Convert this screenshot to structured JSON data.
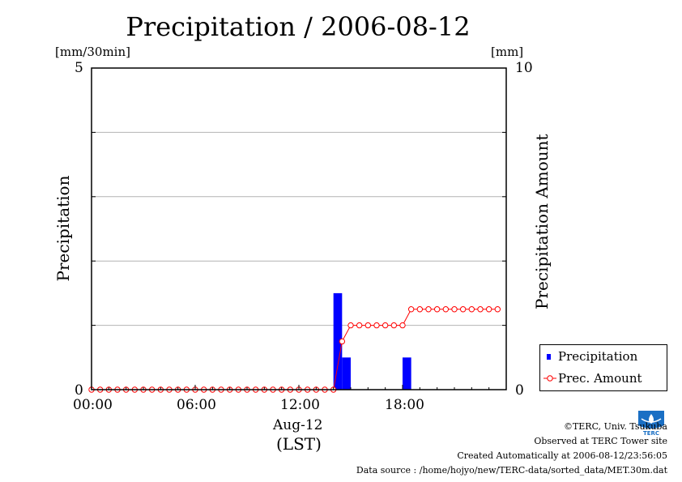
{
  "header": {
    "title": "Precipitation / 2006-08-12",
    "left_unit": "[mm/30min]",
    "right_unit": "[mm]"
  },
  "axes": {
    "left_ylabel": "Precipitation",
    "right_ylabel": "Precipitation Amount",
    "left_ticks": [
      "5",
      "0"
    ],
    "right_ticks": [
      "10",
      "0"
    ],
    "x_ticks": [
      "00:00",
      "06:00",
      "12:00",
      "18:00"
    ],
    "x_date": "Aug-12",
    "x_unit": "(LST)"
  },
  "legend": {
    "items": [
      {
        "label": "Precipitation",
        "color": "#0000ff"
      },
      {
        "label": "Prec. Amount",
        "color": "#ff0000"
      }
    ]
  },
  "footer": {
    "copyright": "©TERC, Univ. Tsukuba",
    "observed": "Observed at TERC Tower site",
    "created": "Created Automatically at 2006-08-12/23:56:05",
    "source": "Data source : /home/hojyo/new/TERC-data/sorted_data/MET.30m.dat"
  },
  "logo": {
    "text": "TERC",
    "color": "#1a6fc4"
  },
  "chart_data": {
    "type": "bar",
    "title": "Precipitation / 2006-08-12",
    "xlabel": "Aug-12 (LST)",
    "x_unit": "hours",
    "xlim": [
      0,
      24
    ],
    "ylabel": "Precipitation",
    "ylim": [
      0,
      5
    ],
    "y2label": "Precipitation Amount",
    "y2lim": [
      0,
      10
    ],
    "grid": true,
    "legend_position": "bottom-right",
    "bars": [
      {
        "time": 14.0,
        "value": 1.5
      },
      {
        "time": 14.5,
        "value": 0.5
      },
      {
        "time": 18.0,
        "value": 0.5
      }
    ],
    "cumulative": {
      "times": [
        0,
        0.5,
        1,
        1.5,
        2,
        2.5,
        3,
        3.5,
        4,
        4.5,
        5,
        5.5,
        6,
        6.5,
        7,
        7.5,
        8,
        8.5,
        9,
        9.5,
        10,
        10.5,
        11,
        11.5,
        12,
        12.5,
        13,
        13.5,
        14,
        14.5,
        15,
        15.5,
        16,
        16.5,
        17,
        17.5,
        18,
        18.5,
        19,
        19.5,
        20,
        20.5,
        21,
        21.5,
        22,
        22.5,
        23,
        23.5
      ],
      "values": [
        0,
        0,
        0,
        0,
        0,
        0,
        0,
        0,
        0,
        0,
        0,
        0,
        0,
        0,
        0,
        0,
        0,
        0,
        0,
        0,
        0,
        0,
        0,
        0,
        0,
        0,
        0,
        0,
        0,
        1.5,
        2,
        2,
        2,
        2,
        2,
        2,
        2,
        2.5,
        2.5,
        2.5,
        2.5,
        2.5,
        2.5,
        2.5,
        2.5,
        2.5,
        2.5,
        2.5
      ]
    }
  }
}
